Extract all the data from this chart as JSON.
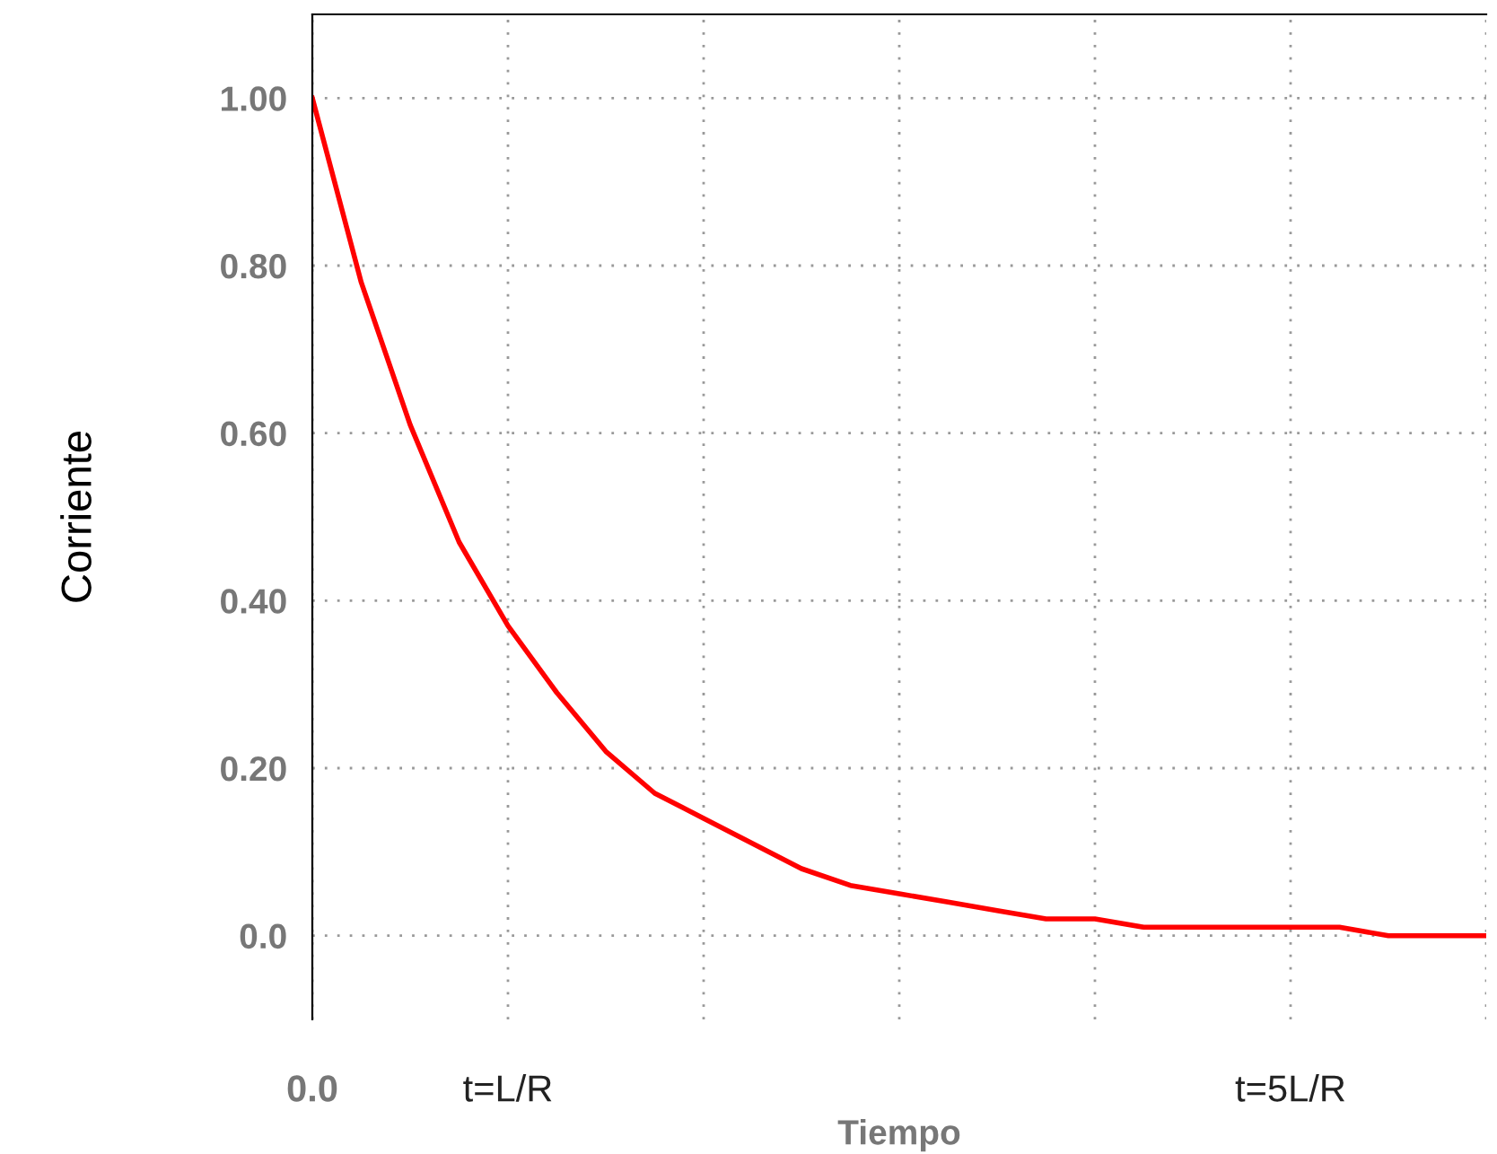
{
  "chart_data": {
    "type": "line",
    "xlabel": "Tiempo",
    "ylabel": "Corriente",
    "x": [
      0,
      0.25,
      0.5,
      0.75,
      1,
      1.25,
      1.5,
      1.75,
      2,
      2.25,
      2.5,
      2.75,
      3,
      3.25,
      3.5,
      3.75,
      4,
      4.25,
      4.5,
      4.75,
      5,
      5.25,
      5.5,
      5.75,
      6
    ],
    "series": [
      {
        "color": "#ff0000",
        "values": [
          1.0,
          0.78,
          0.61,
          0.47,
          0.37,
          0.29,
          0.22,
          0.17,
          0.14,
          0.11,
          0.08,
          0.06,
          0.05,
          0.04,
          0.03,
          0.02,
          0.02,
          0.01,
          0.01,
          0.01,
          0.01,
          0.01,
          0.0,
          0.0,
          0.0
        ]
      }
    ],
    "xlim": [
      0,
      6
    ],
    "ylim": [
      -0.1,
      1.1
    ],
    "xticks": [
      {
        "value": 0,
        "label": "0.0"
      },
      {
        "value": 1,
        "label": "t=L/R"
      },
      {
        "value": 2,
        "label": null
      },
      {
        "value": 3,
        "label": null
      },
      {
        "value": 4,
        "label": null
      },
      {
        "value": 5,
        "label": "t=5L/R"
      },
      {
        "value": 6,
        "label": null
      }
    ],
    "yticks": [
      {
        "value": 0,
        "label": "0.0"
      },
      {
        "value": 0.2,
        "label": "0.20"
      },
      {
        "value": 0.4,
        "label": "0.40"
      },
      {
        "value": 0.6,
        "label": "0.60"
      },
      {
        "value": 0.8,
        "label": "0.80"
      },
      {
        "value": 1.0,
        "label": "1.00"
      }
    ],
    "grid": true,
    "legend": false,
    "line_style": "solid",
    "marker": "none"
  }
}
